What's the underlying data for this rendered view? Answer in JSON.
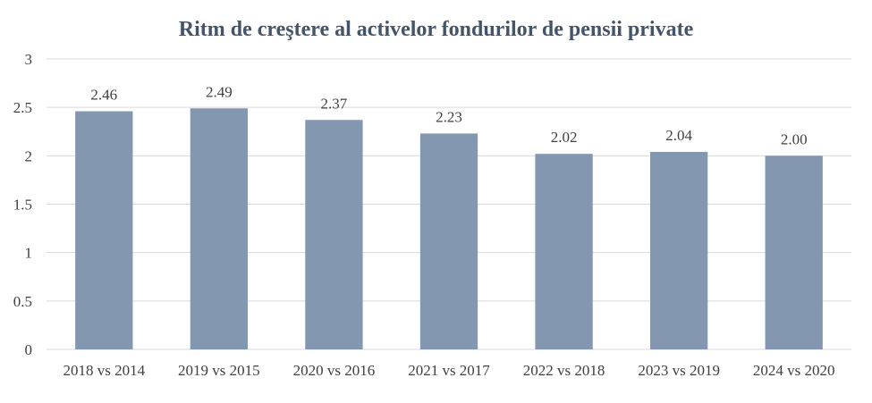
{
  "chart_data": {
    "type": "bar",
    "title": "Ritm de creştere al activelor fondurilor de pensii private",
    "categories": [
      "2018 vs 2014",
      "2019 vs 2015",
      "2020 vs 2016",
      "2021 vs 2017",
      "2022 vs 2018",
      "2023 vs 2019",
      "2024 vs 2020"
    ],
    "values": [
      2.46,
      2.49,
      2.37,
      2.23,
      2.02,
      2.04,
      2.0
    ],
    "data_labels": [
      "2.46",
      "2.49",
      "2.37",
      "2.23",
      "2.02",
      "2.04",
      "2.00"
    ],
    "yticks": [
      "0",
      "0.5",
      "1",
      "1.5",
      "2",
      "2.5",
      "3"
    ],
    "ylim": [
      0,
      3
    ],
    "grid": true,
    "legend": "none",
    "bar_color": "#8497b0",
    "title_color": "#44546a"
  }
}
